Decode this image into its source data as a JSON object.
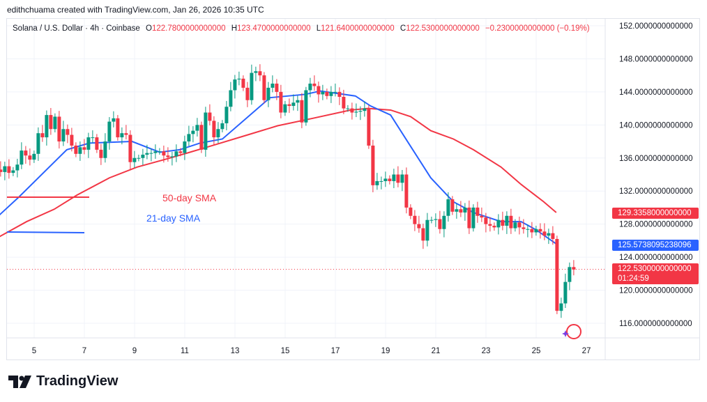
{
  "credit": "edithchuama created with TradingView.com, Jan 26, 2026 10:35 UTC",
  "legend": {
    "symbol": "Solana / U.S. Dollar · 4h · Coinbase",
    "o_label": "O",
    "o": "122.7800000000000",
    "h_label": "H",
    "h": "123.4700000000000",
    "l_label": "L",
    "l": "121.6400000000000",
    "c_label": "C",
    "c": "122.5300000000000",
    "change": "−0.2300000000000 (−0.19%)"
  },
  "annotations": {
    "sma50": "50-day SMA",
    "sma21": "21-day SMA"
  },
  "price_labels": {
    "sma50": "129.3358000000000",
    "sma21": "125.5738095238096",
    "last": "122.5300000000000",
    "countdown": "01:24:59"
  },
  "logo": "TradingView",
  "colors": {
    "up": "#089981",
    "down": "#f23645",
    "sma21": "#2962ff",
    "sma50": "#f23645",
    "grid": "#f0f3fa"
  },
  "chart_data": {
    "type": "candlestick",
    "interval": "4h",
    "y_ticks": [
      "152.0000000000000",
      "148.0000000000000",
      "144.0000000000000",
      "140.0000000000000",
      "136.0000000000000",
      "132.0000000000000",
      "128.0000000000000",
      "124.0000000000000",
      "120.0000000000000",
      "116.0000000000000"
    ],
    "y_tick_values": [
      152,
      148,
      144,
      140,
      136,
      132,
      128,
      124,
      120,
      116
    ],
    "x_ticks": [
      "5",
      "7",
      "9",
      "11",
      "13",
      "15",
      "17",
      "19",
      "21",
      "23",
      "25",
      "27"
    ],
    "x_tick_values": [
      5,
      7,
      9,
      11,
      13,
      15,
      17,
      19,
      21,
      23,
      25,
      27
    ],
    "first_candle_day": 3.33,
    "first_open": 134.6,
    "closes": [
      134.8,
      134.6,
      134.3,
      135.0,
      134.2,
      134.5,
      135.2,
      136.9,
      136.3,
      135.8,
      136.5,
      139.0,
      138.5,
      141.2,
      139.5,
      141.0,
      138.0,
      139.5,
      138.8,
      137.5,
      136.5,
      137.3,
      137.0,
      138.5,
      138.5,
      137.0,
      136.0,
      138.0,
      140.4,
      140.8,
      138.5,
      139.0,
      138.8,
      135.5,
      136.0,
      136.0,
      136.4,
      136.6,
      136.6,
      136.8,
      136.8,
      136.3,
      136.1,
      136.2,
      136.8,
      136.6,
      138.0,
      138.9,
      139.3,
      140.0,
      137.0,
      141.5,
      140.5,
      138.5,
      139.5,
      140.2,
      142.2,
      144.2,
      145.5,
      145.6,
      144.5,
      143.0,
      146.3,
      146.5,
      146.0,
      143.0,
      144.5,
      145.0,
      144.0,
      141.5,
      142.5,
      142.3,
      142.7,
      143.0,
      140.3,
      144.2,
      145.0,
      144.7,
      143.7,
      144.0,
      143.5,
      144.0,
      144.0,
      143.4,
      142.0,
      142.0,
      141.5,
      141.6,
      141.7,
      142.0,
      137.5,
      132.7,
      133.2,
      133.2,
      133.5,
      133.2,
      134.0,
      133.0,
      134.0,
      130.0,
      129.0,
      128.0,
      127.5,
      126.0,
      128.5,
      128.5,
      128.6,
      127.4,
      129.0,
      131.0,
      129.5,
      129.8,
      129.4,
      130.0,
      127.5,
      130.0,
      129.0,
      128.8,
      128.0,
      127.8,
      127.6,
      128.5,
      127.8,
      129.0,
      127.5,
      128.2,
      127.6,
      127.4,
      127.4,
      127.0,
      127.4,
      127.1,
      126.6,
      126.9,
      126.2,
      117.5,
      118.4,
      121.0,
      122.8,
      122.5
    ],
    "last_price": 122.53,
    "sma21": [
      [
        3.33,
        128.3
      ],
      [
        4.4,
        131.3
      ],
      [
        6.3,
        137
      ],
      [
        7.2,
        137.8
      ],
      [
        8.9,
        138
      ],
      [
        10,
        136.7
      ],
      [
        10.8,
        137
      ],
      [
        11.6,
        137.8
      ],
      [
        12.5,
        138.3
      ],
      [
        13.6,
        141.2
      ],
      [
        14.4,
        143.3
      ],
      [
        15.8,
        143.7
      ],
      [
        16.4,
        144.1
      ],
      [
        17.8,
        143.5
      ],
      [
        18.4,
        142.3
      ],
      [
        19.2,
        141.2
      ],
      [
        20,
        137.4
      ],
      [
        20.8,
        133.6
      ],
      [
        21.7,
        130.7
      ],
      [
        22.5,
        129.4
      ],
      [
        23.6,
        128.3
      ],
      [
        24.4,
        128.3
      ],
      [
        25,
        127.3
      ],
      [
        25.8,
        125.6
      ]
    ],
    "sma50": [
      [
        3.33,
        126
      ],
      [
        4.7,
        128.3
      ],
      [
        5.8,
        129.8
      ],
      [
        6.7,
        131.5
      ],
      [
        8.0,
        133.6
      ],
      [
        9.1,
        134.9
      ],
      [
        10.3,
        135.9
      ],
      [
        11.1,
        136.6
      ],
      [
        12.2,
        137.6
      ],
      [
        13.4,
        138.7
      ],
      [
        14.7,
        139.9
      ],
      [
        16.1,
        140.8
      ],
      [
        17.6,
        141.8
      ],
      [
        18.3,
        142
      ],
      [
        19.2,
        141.8
      ],
      [
        20,
        141
      ],
      [
        20.8,
        139.3
      ],
      [
        21.7,
        138.3
      ],
      [
        22.5,
        137
      ],
      [
        23.6,
        134.9
      ],
      [
        24.4,
        132.8
      ],
      [
        25.3,
        130.7
      ],
      [
        25.8,
        129.4
      ]
    ]
  }
}
